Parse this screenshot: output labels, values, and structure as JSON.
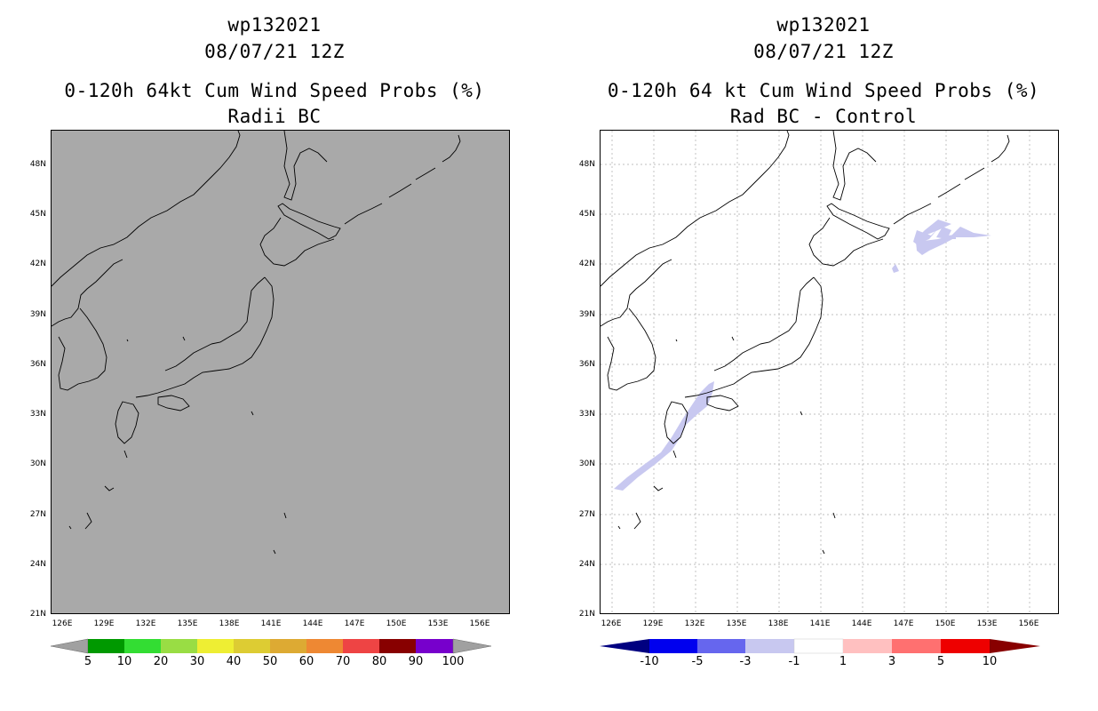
{
  "left": {
    "title_line1": "wp132021",
    "title_line2": "08/07/21 12Z",
    "title_line3": "0-120h 64kt Cum Wind Speed Probs (%)",
    "title_line4": "Radii BC",
    "background_color": "#a9a9a9",
    "colorbar_labels": [
      "5",
      "10",
      "20",
      "30",
      "40",
      "50",
      "60",
      "70",
      "80",
      "90",
      "100"
    ],
    "colorbar_colors": [
      "#a0a0a0",
      "#009900",
      "#33dd33",
      "#99dd44",
      "#eeee33",
      "#ddcc33",
      "#ddaa33",
      "#ee8833",
      "#ee4444",
      "#880000",
      "#7700cc",
      "#a0a0a0"
    ]
  },
  "right": {
    "title_line1": "wp132021",
    "title_line2": "08/07/21 12Z",
    "title_line3": "0-120h 64 kt Cum Wind Speed Probs (%)",
    "title_line4": "Rad BC - Control",
    "background_color": "#ffffff",
    "shade_color": "#c8c8f0",
    "colorbar_labels": [
      "-10",
      "-5",
      "-3",
      "-1",
      "1",
      "3",
      "5",
      "10"
    ],
    "colorbar_colors": [
      "#000080",
      "#0000ee",
      "#6666ee",
      "#c8c8f0",
      "#ffffff",
      "#ffc0c0",
      "#ff7070",
      "#ee0000",
      "#880000"
    ]
  },
  "lat_labels": [
    "48N",
    "45N",
    "42N",
    "39N",
    "36N",
    "33N",
    "30N",
    "27N",
    "24N",
    "21N"
  ],
  "lon_labels": [
    "126E",
    "129E",
    "132E",
    "135E",
    "138E",
    "141E",
    "144E",
    "147E",
    "150E",
    "153E",
    "156E"
  ]
}
